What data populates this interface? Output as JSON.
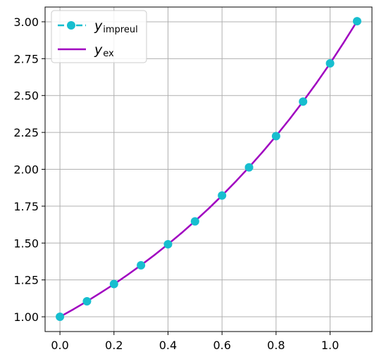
{
  "chart_data": {
    "type": "line",
    "title": "",
    "xlabel": "",
    "ylabel": "",
    "xlim": [
      -0.055,
      1.155
    ],
    "ylim": [
      0.9,
      3.1
    ],
    "grid": true,
    "legend_position": "top-left",
    "x_ticks": [
      0.0,
      0.2,
      0.4,
      0.6,
      0.8,
      1.0
    ],
    "x_tick_labels": [
      "0.0",
      "0.2",
      "0.4",
      "0.6",
      "0.8",
      "1.0"
    ],
    "y_ticks": [
      1.0,
      1.25,
      1.5,
      1.75,
      2.0,
      2.25,
      2.5,
      2.75,
      3.0
    ],
    "y_tick_labels": [
      "1.00",
      "1.25",
      "1.50",
      "1.75",
      "2.00",
      "2.25",
      "2.50",
      "2.75",
      "3.00"
    ],
    "series": [
      {
        "name": "y_impreul",
        "legend_main": "y",
        "legend_sub": "impreul",
        "style": "dashed-markers",
        "color": "#17becf",
        "x": [
          0.0,
          0.1,
          0.2,
          0.3,
          0.4,
          0.5,
          0.6,
          0.7,
          0.8,
          0.9,
          1.0,
          1.1
        ],
        "y": [
          1.0,
          1.105,
          1.222,
          1.349,
          1.492,
          1.647,
          1.822,
          2.013,
          2.225,
          2.459,
          2.718,
          3.004
        ]
      },
      {
        "name": "y_ex",
        "legend_main": "y",
        "legend_sub": "ex",
        "style": "solid",
        "color": "#a000c0",
        "x": [
          0.0,
          0.05,
          0.1,
          0.15,
          0.2,
          0.25,
          0.3,
          0.35,
          0.4,
          0.45,
          0.5,
          0.55,
          0.6,
          0.65,
          0.7,
          0.75,
          0.8,
          0.85,
          0.9,
          0.95,
          1.0,
          1.05,
          1.1
        ],
        "y": [
          1.0,
          1.051,
          1.105,
          1.162,
          1.221,
          1.284,
          1.35,
          1.419,
          1.492,
          1.568,
          1.649,
          1.733,
          1.822,
          1.916,
          2.014,
          2.117,
          2.226,
          2.34,
          2.46,
          2.586,
          2.718,
          2.858,
          3.004
        ]
      }
    ]
  }
}
